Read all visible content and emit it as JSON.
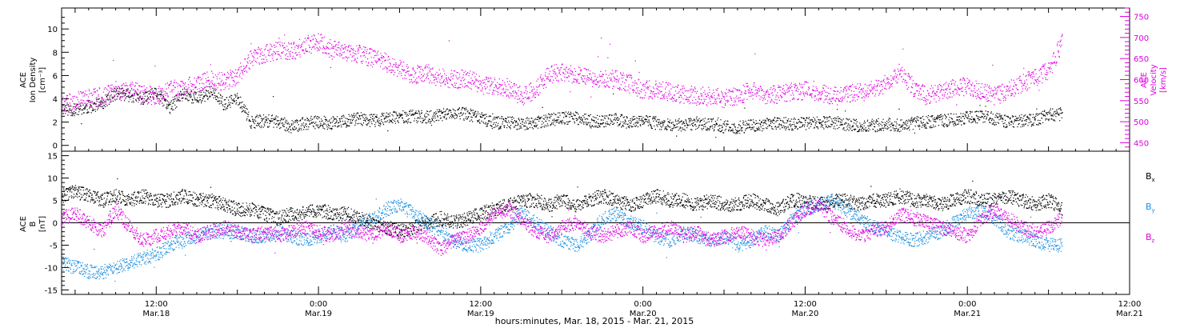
{
  "footer": "hours:minutes, Mar. 18, 2015 - Mar. 21, 2015",
  "x_ticks": [
    {
      "hour": 12,
      "time": "12:00",
      "date": "Mar.18"
    },
    {
      "hour": 24,
      "time": "0:00",
      "date": "Mar.19"
    },
    {
      "hour": 36,
      "time": "12:00",
      "date": "Mar.19"
    },
    {
      "hour": 48,
      "time": "0:00",
      "date": "Mar.20"
    },
    {
      "hour": 60,
      "time": "12:00",
      "date": "Mar.20"
    },
    {
      "hour": 72,
      "time": "0:00",
      "date": "Mar.21"
    },
    {
      "hour": 84,
      "time": "12:00",
      "date": "Mar.21"
    }
  ],
  "colors": {
    "black": "#000000",
    "magenta": "#e000e0",
    "blue": "#1a8fe0"
  },
  "chart_data": [
    {
      "type": "scatter",
      "panel": "top",
      "xlim": [
        5,
        84
      ],
      "x_unit": "hours since Mar. 18, 2015 0:00",
      "ylabel_left": [
        "ACE",
        "Ion Density",
        "[cm⁻³]"
      ],
      "ylabel_right": [
        "ACE",
        "Velocity",
        "[km/s]"
      ],
      "ylim_left": [
        -0.5,
        11.8
      ],
      "ylim_right": [
        430,
        770
      ],
      "left_ticks": [
        0,
        2,
        4,
        6,
        8,
        10
      ],
      "right_ticks": [
        450,
        500,
        550,
        600,
        650,
        700,
        750
      ],
      "series": [
        {
          "axis": "left",
          "color": "#000000",
          "x": [
            5,
            6,
            7,
            8,
            9,
            10,
            11,
            12,
            13,
            14,
            15,
            16,
            17,
            18,
            19,
            20,
            21,
            22,
            23,
            24,
            25,
            26,
            27,
            28,
            29,
            30,
            31,
            32,
            33,
            34,
            35,
            36,
            37,
            38,
            39,
            40,
            41,
            42,
            43,
            44,
            45,
            46,
            47,
            48,
            49,
            50,
            51,
            52,
            53,
            54,
            55,
            56,
            57,
            58,
            59,
            60,
            61,
            62,
            63,
            64,
            65,
            66,
            67,
            68,
            69,
            70,
            71,
            72,
            73,
            74,
            75,
            76,
            77,
            78,
            79
          ],
          "values": [
            3.2,
            3.0,
            3.3,
            3.6,
            4.5,
            4.3,
            4.0,
            4.5,
            3.2,
            4.5,
            4.0,
            4.6,
            3.5,
            4.0,
            2.0,
            2.1,
            2.0,
            1.6,
            1.9,
            2.0,
            1.9,
            2.1,
            2.3,
            2.1,
            2.3,
            2.4,
            2.5,
            2.4,
            2.6,
            2.7,
            2.7,
            2.3,
            1.9,
            2.0,
            1.8,
            1.9,
            2.2,
            2.3,
            2.4,
            2.1,
            2.0,
            2.2,
            1.9,
            2.1,
            1.9,
            1.8,
            1.7,
            1.9,
            1.8,
            1.6,
            1.5,
            1.7,
            1.8,
            1.9,
            1.8,
            1.9,
            1.9,
            2.0,
            1.8,
            1.7,
            1.7,
            1.8,
            1.7,
            1.9,
            2.0,
            2.1,
            2.2,
            2.4,
            2.5,
            2.3,
            2.0,
            2.1,
            2.2,
            2.6,
            2.7
          ]
        },
        {
          "axis": "right",
          "color": "#e000e0",
          "x": [
            5,
            6,
            7,
            8,
            9,
            10,
            11,
            12,
            13,
            14,
            15,
            16,
            17,
            18,
            19,
            20,
            21,
            22,
            23,
            24,
            25,
            26,
            27,
            28,
            29,
            30,
            31,
            32,
            33,
            34,
            35,
            36,
            37,
            38,
            39,
            40,
            41,
            42,
            43,
            44,
            45,
            46,
            47,
            48,
            49,
            50,
            51,
            52,
            53,
            54,
            55,
            56,
            57,
            58,
            59,
            60,
            61,
            62,
            63,
            64,
            65,
            66,
            67,
            68,
            69,
            70,
            71,
            72,
            73,
            74,
            75,
            76,
            77,
            78,
            79
          ],
          "values": [
            540,
            550,
            555,
            560,
            570,
            575,
            565,
            560,
            575,
            580,
            590,
            600,
            595,
            610,
            650,
            660,
            670,
            665,
            680,
            690,
            670,
            665,
            660,
            650,
            640,
            625,
            610,
            615,
            605,
            600,
            605,
            585,
            585,
            580,
            560,
            575,
            610,
            620,
            610,
            605,
            600,
            600,
            590,
            575,
            575,
            570,
            565,
            560,
            560,
            555,
            560,
            575,
            560,
            565,
            570,
            575,
            570,
            560,
            565,
            570,
            575,
            590,
            620,
            580,
            560,
            570,
            580,
            585,
            570,
            560,
            575,
            590,
            605,
            620,
            690
          ]
        }
      ]
    },
    {
      "type": "scatter",
      "panel": "bottom",
      "xlim": [
        5,
        84
      ],
      "x_unit": "hours since Mar. 18, 2015 0:00",
      "ylabel_left": [
        "ACE",
        "B",
        "[nT]"
      ],
      "ylim": [
        -16,
        16
      ],
      "ticks": [
        -15,
        -10,
        -5,
        0,
        5,
        10,
        15
      ],
      "series": [
        {
          "name": "Bx",
          "color": "#000000",
          "x": [
            5,
            6,
            7,
            8,
            9,
            10,
            11,
            12,
            13,
            14,
            15,
            16,
            17,
            18,
            19,
            20,
            21,
            22,
            23,
            24,
            25,
            26,
            27,
            28,
            29,
            30,
            31,
            32,
            33,
            34,
            35,
            36,
            37,
            38,
            39,
            40,
            41,
            42,
            43,
            44,
            45,
            46,
            47,
            48,
            49,
            50,
            51,
            52,
            53,
            54,
            55,
            56,
            57,
            58,
            59,
            60,
            61,
            62,
            63,
            64,
            65,
            66,
            67,
            68,
            69,
            70,
            71,
            72,
            73,
            74,
            75,
            76,
            77,
            78,
            79
          ],
          "values": [
            6,
            7,
            6,
            5,
            6,
            5,
            6,
            5,
            5,
            6,
            5,
            5,
            4,
            3,
            3,
            2,
            1,
            2,
            2,
            3,
            2,
            2,
            1,
            0,
            -1,
            -2,
            -1,
            0,
            1,
            0,
            1,
            2,
            3,
            4,
            5,
            5,
            4,
            5,
            4,
            5,
            6,
            5,
            4,
            5,
            6,
            5,
            5,
            4,
            5,
            4,
            4,
            5,
            4,
            3,
            5,
            5,
            4,
            5,
            5,
            4,
            5,
            5,
            6,
            5,
            5,
            4,
            5,
            6,
            5,
            5,
            6,
            5,
            4,
            5,
            3
          ]
        },
        {
          "name": "By",
          "color": "#1a8fe0",
          "x": [
            5,
            6,
            7,
            8,
            9,
            10,
            11,
            12,
            13,
            14,
            15,
            16,
            17,
            18,
            19,
            20,
            21,
            22,
            23,
            24,
            25,
            26,
            27,
            28,
            29,
            30,
            31,
            32,
            33,
            34,
            35,
            36,
            37,
            38,
            39,
            40,
            41,
            42,
            43,
            44,
            45,
            46,
            47,
            48,
            49,
            50,
            51,
            52,
            53,
            54,
            55,
            56,
            57,
            58,
            59,
            60,
            61,
            62,
            63,
            64,
            65,
            66,
            67,
            68,
            69,
            70,
            71,
            72,
            73,
            74,
            75,
            76,
            77,
            78,
            79
          ],
          "values": [
            -9,
            -10,
            -11,
            -11,
            -10,
            -9,
            -8,
            -7,
            -5,
            -4,
            -3,
            -2,
            -2,
            -2,
            -3,
            -3,
            -2,
            -3,
            -4,
            -3,
            -2,
            -3,
            -1,
            1,
            3,
            4,
            2,
            0,
            -2,
            -4,
            -5,
            -5,
            -3,
            -1,
            2,
            0,
            -2,
            -4,
            -5,
            -3,
            1,
            2,
            0,
            -1,
            -3,
            -4,
            -2,
            -3,
            -4,
            -3,
            -5,
            -4,
            -2,
            -3,
            1,
            3,
            4,
            5,
            3,
            1,
            -1,
            -2,
            -3,
            -4,
            -3,
            -2,
            0,
            2,
            3,
            1,
            -2,
            -3,
            -4,
            -5,
            -5
          ]
        },
        {
          "name": "Bz",
          "color": "#e000e0",
          "x": [
            5,
            6,
            7,
            8,
            9,
            10,
            11,
            12,
            13,
            14,
            15,
            16,
            17,
            18,
            19,
            20,
            21,
            22,
            23,
            24,
            25,
            26,
            27,
            28,
            29,
            30,
            31,
            32,
            33,
            34,
            35,
            36,
            37,
            38,
            39,
            40,
            41,
            42,
            43,
            44,
            45,
            46,
            47,
            48,
            49,
            50,
            51,
            52,
            53,
            54,
            55,
            56,
            57,
            58,
            59,
            60,
            61,
            62,
            63,
            64,
            65,
            66,
            67,
            68,
            69,
            70,
            71,
            72,
            73,
            74,
            75,
            76,
            77,
            78,
            79
          ],
          "values": [
            1,
            2,
            0,
            -2,
            3,
            -1,
            -4,
            -3,
            -2,
            -1,
            -3,
            -2,
            -1,
            -2,
            -3,
            -2,
            -3,
            -2,
            -1,
            -2,
            -3,
            -1,
            -2,
            -3,
            -1,
            -3,
            -2,
            -3,
            -6,
            -4,
            -3,
            -1,
            2,
            3,
            1,
            -2,
            -3,
            -1,
            0,
            -2,
            -3,
            -2,
            -1,
            -3,
            -2,
            -1,
            -3,
            -2,
            -4,
            -3,
            -2,
            -3,
            -4,
            -3,
            0,
            3,
            4,
            1,
            -1,
            -3,
            -2,
            -1,
            2,
            1,
            0,
            -1,
            -2,
            -3,
            1,
            3,
            1,
            -1,
            -2,
            -1,
            1
          ]
        }
      ],
      "legend": [
        {
          "main": "B",
          "sub": "x",
          "color": "#000000"
        },
        {
          "main": "B",
          "sub": "y",
          "color": "#1a8fe0"
        },
        {
          "main": "B",
          "sub": "z",
          "color": "#e000e0"
        }
      ]
    }
  ]
}
